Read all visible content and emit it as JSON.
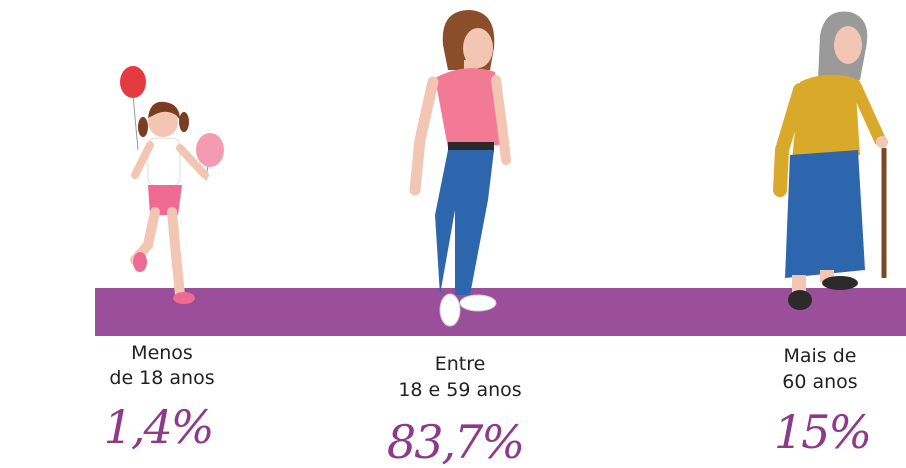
{
  "groups": [
    {
      "label_lines": [
        "Menos",
        "de 18  anos"
      ],
      "percent": "1,4%"
    },
    {
      "label_lines": [
        "Entre",
        "18 e 59 anos"
      ],
      "percent": "83,7%"
    },
    {
      "label_lines": [
        "Mais de",
        "60 anos"
      ],
      "percent": "15%"
    }
  ]
}
